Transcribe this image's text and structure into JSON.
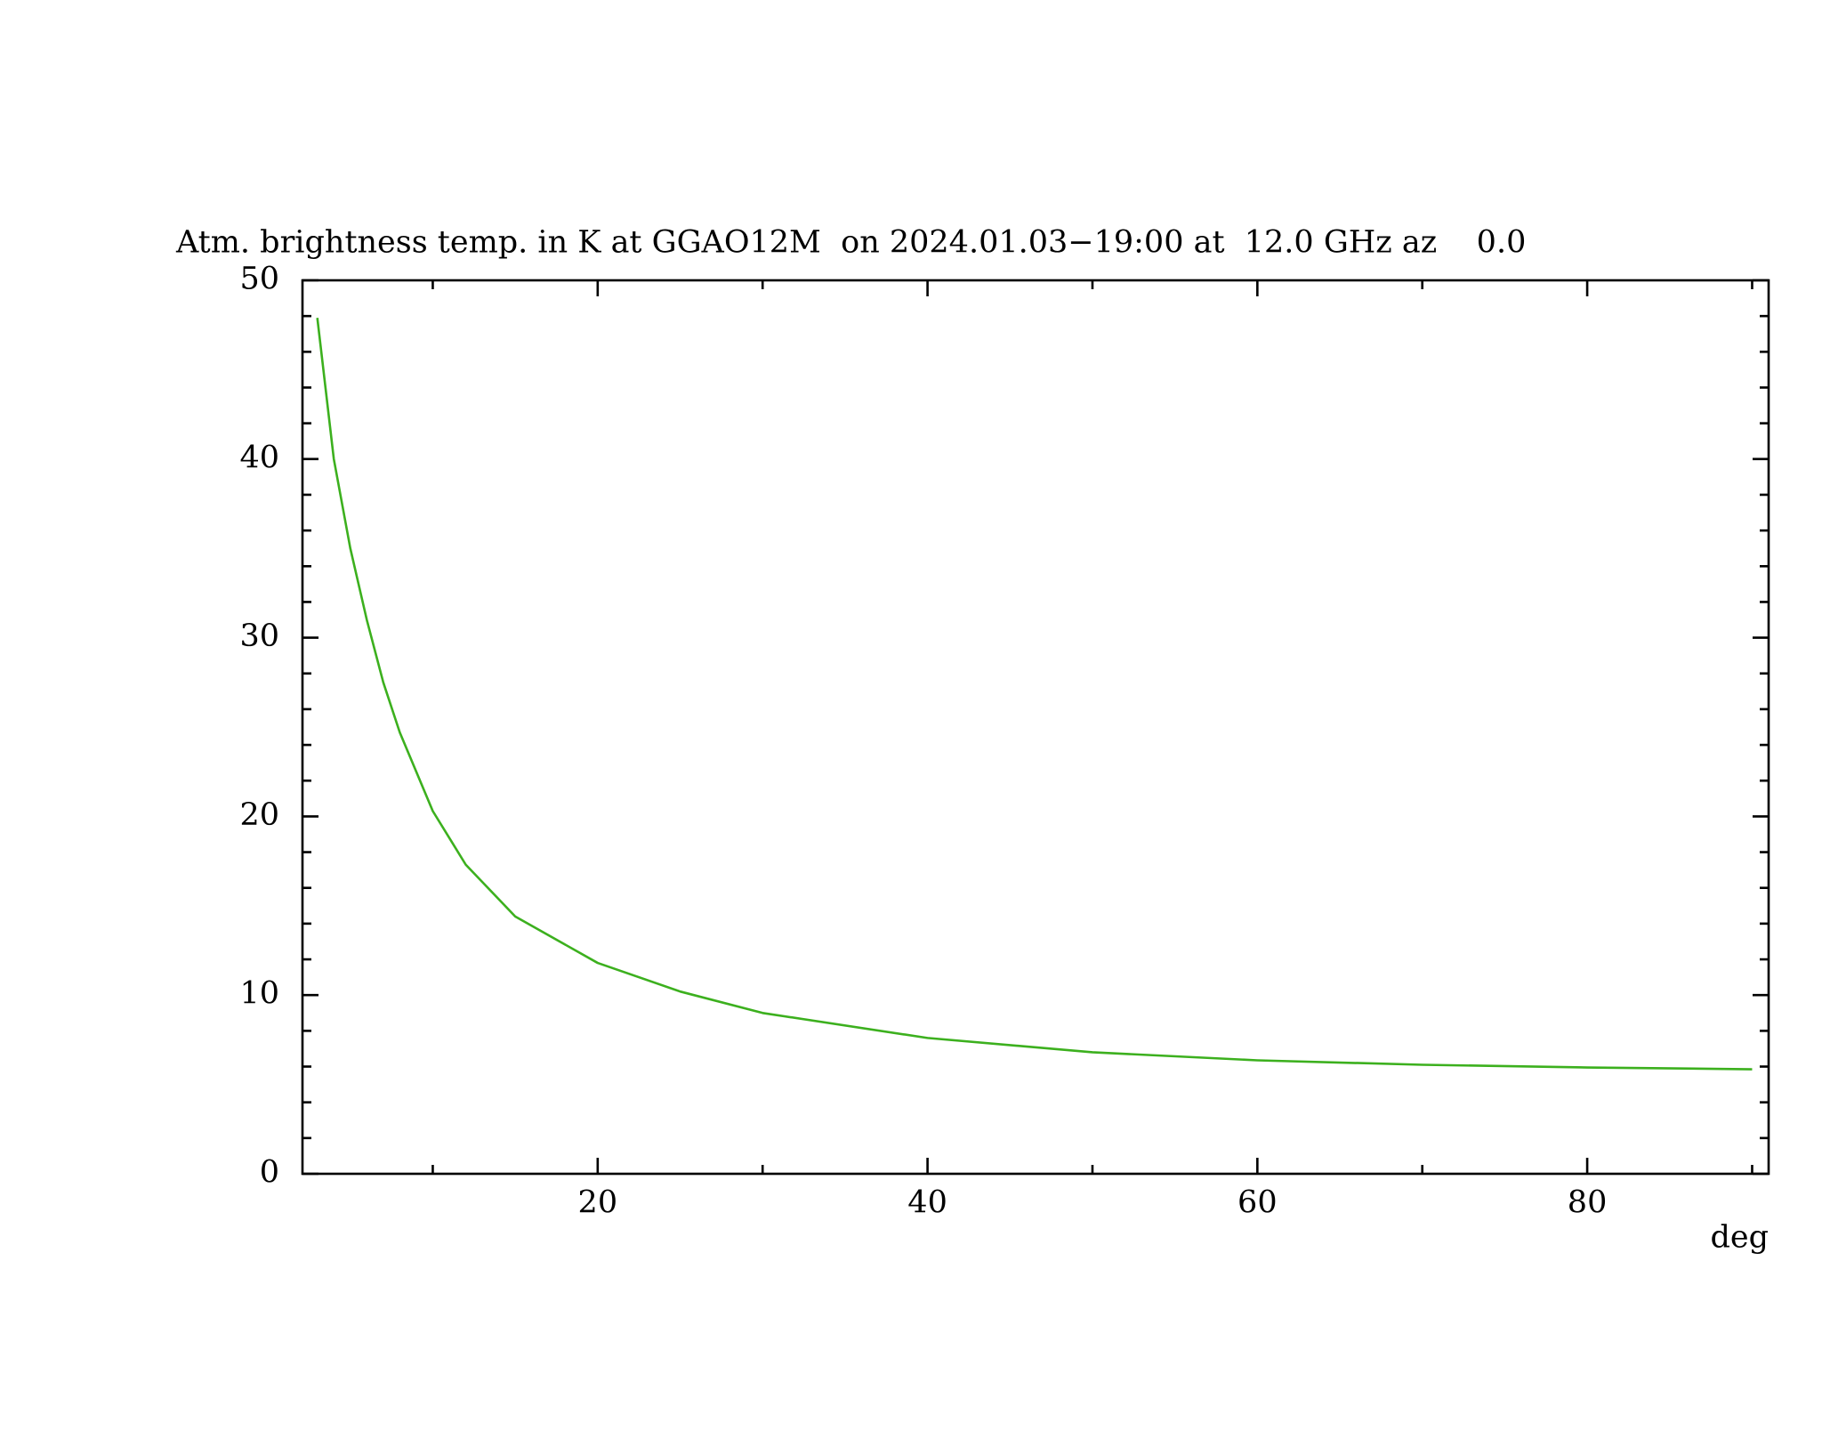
{
  "chart_data": {
    "type": "line",
    "title": "Atm. brightness temp. in K at GGAO12M  on 2024.01.03−19:00 at  12.0 GHz az    0.0",
    "x_label": "deg",
    "x": [
      3,
      4,
      5,
      6,
      7,
      8,
      10,
      12,
      15,
      20,
      25,
      30,
      40,
      50,
      60,
      70,
      80,
      90
    ],
    "series": [
      {
        "color": "#3cb01e",
        "values": [
          47.9,
          40,
          35,
          31,
          27.5,
          24.7,
          20.3,
          17.3,
          14.4,
          11.8,
          10.2,
          9.0,
          7.6,
          6.8,
          6.35,
          6.1,
          5.95,
          5.85
        ]
      }
    ],
    "xlim": [
      2.1,
      91
    ],
    "xticks": [
      20,
      40,
      60,
      80
    ],
    "ylim": [
      0,
      50
    ],
    "yticks": [
      0,
      10,
      20,
      30,
      40,
      50
    ]
  }
}
